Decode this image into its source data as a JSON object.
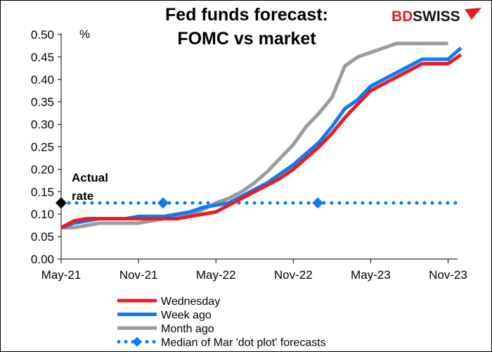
{
  "chart_data": {
    "type": "line",
    "title": [
      "Fed funds forecast:",
      "FOMC vs market"
    ],
    "ylabel": "%",
    "ylim": [
      0,
      0.5
    ],
    "yticks": [
      "0.00",
      "0.05",
      "0.10",
      "0.15",
      "0.20",
      "0.25",
      "0.30",
      "0.35",
      "0.40",
      "0.45",
      "0.50"
    ],
    "xtick_labels": [
      "May-21",
      "Nov-21",
      "May-22",
      "Nov-22",
      "May-23",
      "Nov-23"
    ],
    "x_start": "May-21",
    "x_unit": "month",
    "grid": false,
    "legend_position": "bottom",
    "series": [
      {
        "name": "Wednesday",
        "color": "#ed1c24",
        "values": [
          0.07,
          0.085,
          0.09,
          0.09,
          0.09,
          0.09,
          0.09,
          0.09,
          0.09,
          0.09,
          0.095,
          0.1,
          0.105,
          0.12,
          0.135,
          0.15,
          0.165,
          0.18,
          0.2,
          0.225,
          0.25,
          0.28,
          0.315,
          0.345,
          0.375,
          0.39,
          0.405,
          0.42,
          0.435,
          0.435,
          0.435,
          0.455
        ]
      },
      {
        "name": "Week ago",
        "color": "#0a7cf5",
        "values": [
          0.07,
          0.08,
          0.085,
          0.09,
          0.09,
          0.09,
          0.095,
          0.095,
          0.095,
          0.1,
          0.105,
          0.115,
          0.12,
          0.125,
          0.14,
          0.155,
          0.17,
          0.19,
          0.21,
          0.235,
          0.26,
          0.295,
          0.335,
          0.355,
          0.385,
          0.4,
          0.415,
          0.43,
          0.445,
          0.445,
          0.445,
          0.47
        ]
      },
      {
        "name": "Month ago",
        "color": "#9b9b9b",
        "values": [
          0.07,
          0.07,
          0.075,
          0.08,
          0.08,
          0.08,
          0.08,
          0.085,
          0.09,
          0.095,
          0.1,
          0.11,
          0.125,
          0.135,
          0.15,
          0.17,
          0.195,
          0.225,
          0.255,
          0.295,
          0.325,
          0.36,
          0.43,
          0.45,
          0.46,
          0.47,
          0.48,
          0.48,
          0.48,
          0.48,
          0.48
        ]
      }
    ],
    "dot_plot": {
      "name": "Median of Mar 'dot plot' forecasts",
      "color": "#0a7cf5",
      "value": 0.125,
      "markers": [
        {
          "x": "Jan-22",
          "y": 0.125
        },
        {
          "x": "Jan-23",
          "y": 0.125
        }
      ]
    },
    "actual_rate": {
      "label": [
        "Actual",
        "rate"
      ],
      "x": "May-21",
      "y": 0.125,
      "color": "#000000"
    }
  },
  "logo": {
    "text_red": "BD",
    "text_black": "SWISS",
    "red": "#e31e24"
  }
}
